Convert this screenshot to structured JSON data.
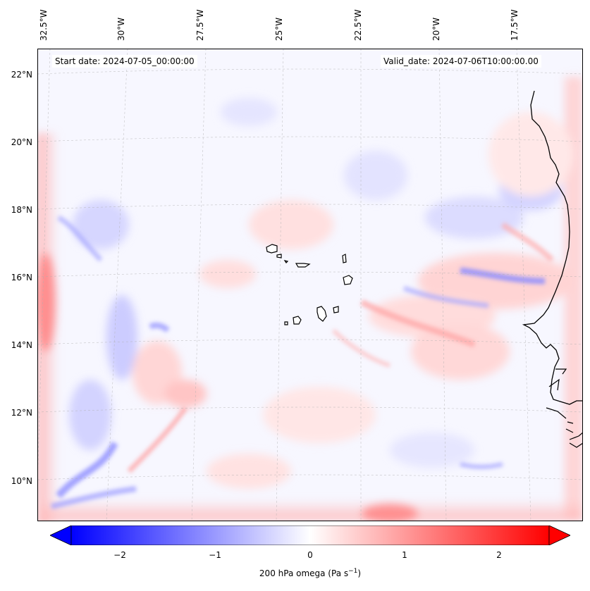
{
  "map": {
    "start_date": "Start date: 2024-07-05_00:00:00",
    "valid_date": "Valid_date: 2024-07-06T10:00:00.00",
    "lon_labels": [
      "32.5°W",
      "30°W",
      "27.5°W",
      "25°W",
      "22.5°W",
      "20°W",
      "17.5°W"
    ],
    "lat_labels": [
      "22°N",
      "20°N",
      "18°N",
      "16°N",
      "14°N",
      "12°N",
      "10°N"
    ],
    "colors": {
      "negative": "#0000ff",
      "zero": "#ffffff",
      "positive": "#ff0000",
      "coast": "#000000",
      "grid": "#b0b0b0"
    }
  },
  "colorbar": {
    "ticks": [
      "−2",
      "−1",
      "0",
      "1",
      "2"
    ],
    "label_main": "200 hPa omega (Pa s",
    "label_sup": "−1",
    "label_end": ")",
    "range": [
      -2.7,
      2.7
    ]
  }
}
